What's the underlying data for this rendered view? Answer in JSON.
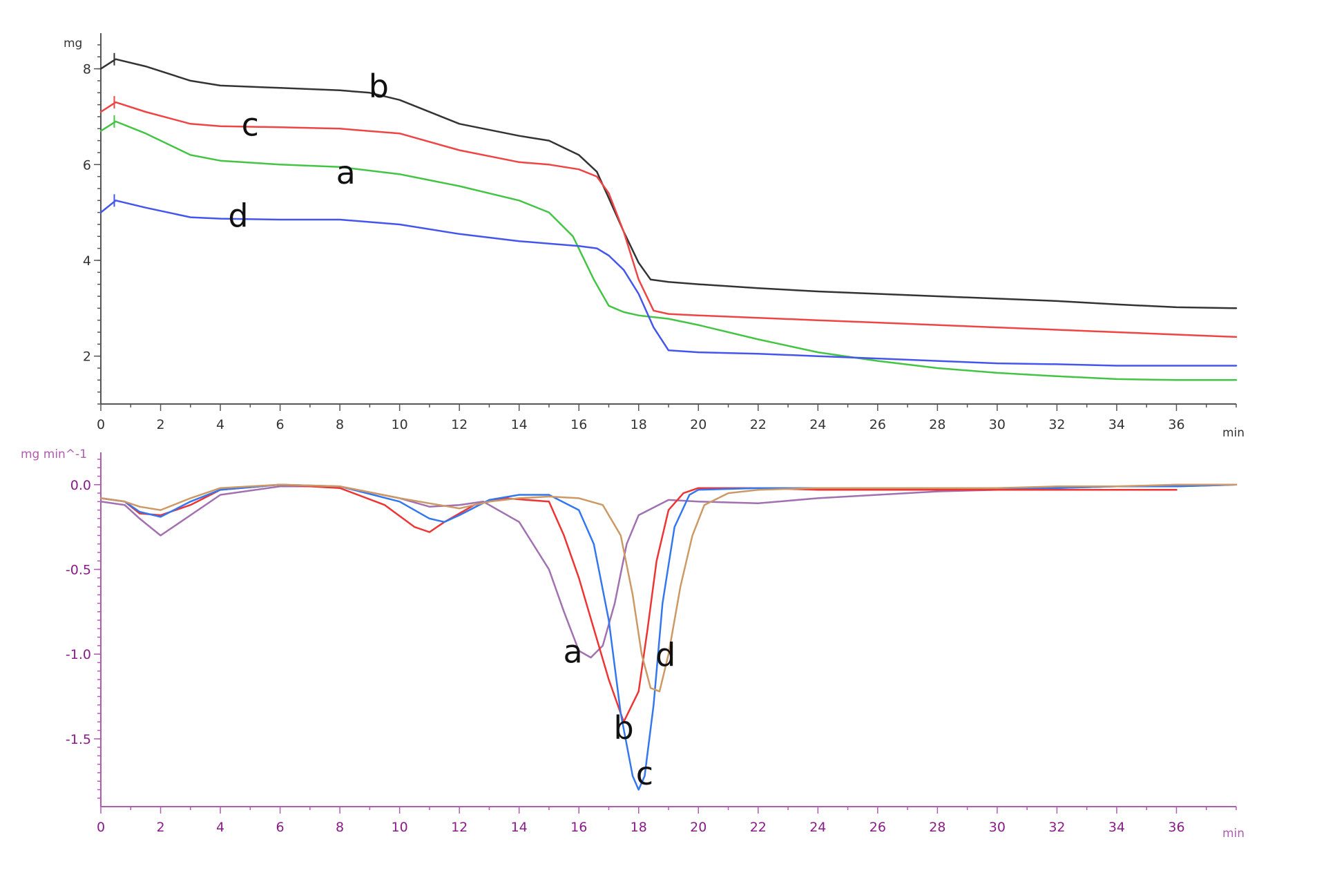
{
  "chart_data": [
    {
      "type": "line",
      "title": "",
      "xlabel": "",
      "ylabel": "",
      "x_unit": "min",
      "y_unit": "mg",
      "xlim": [
        0,
        38
      ],
      "ylim": [
        1,
        8.6
      ],
      "x_ticks": [
        0,
        2,
        4,
        6,
        8,
        10,
        12,
        14,
        16,
        18,
        20,
        22,
        24,
        26,
        28,
        30,
        32,
        34,
        36
      ],
      "y_ticks": [
        2,
        4,
        6,
        8
      ],
      "grid": false,
      "series": [
        {
          "name": "a",
          "color": "#44c444",
          "x": [
            0,
            0.5,
            1.5,
            3,
            4,
            6,
            8,
            10,
            12,
            14,
            15,
            15.8,
            16.5,
            17,
            17.5,
            18,
            19,
            20,
            22,
            24,
            26,
            28,
            30,
            32,
            34,
            36,
            38
          ],
          "y": [
            6.7,
            6.9,
            6.65,
            6.2,
            6.08,
            6.0,
            5.95,
            5.8,
            5.55,
            5.25,
            5.0,
            4.5,
            3.6,
            3.05,
            2.92,
            2.85,
            2.78,
            2.65,
            2.35,
            2.08,
            1.9,
            1.75,
            1.65,
            1.58,
            1.52,
            1.5,
            1.5
          ]
        },
        {
          "name": "b",
          "color": "#333333",
          "x": [
            0,
            0.5,
            1.5,
            3,
            4,
            6,
            8,
            9,
            10,
            12,
            14,
            15,
            16,
            16.6,
            17,
            17.5,
            18,
            18.4,
            19,
            20,
            22,
            24,
            26,
            28,
            30,
            32,
            34,
            36,
            38
          ],
          "y": [
            8.0,
            8.2,
            8.05,
            7.75,
            7.65,
            7.6,
            7.55,
            7.5,
            7.35,
            6.85,
            6.6,
            6.5,
            6.2,
            5.85,
            5.3,
            4.6,
            3.95,
            3.6,
            3.55,
            3.5,
            3.42,
            3.35,
            3.3,
            3.25,
            3.2,
            3.15,
            3.08,
            3.02,
            3.0
          ]
        },
        {
          "name": "c",
          "color": "#ee4444",
          "x": [
            0,
            0.5,
            1.5,
            3,
            4,
            6,
            8,
            10,
            12,
            14,
            15,
            16,
            16.6,
            17,
            17.5,
            18,
            18.5,
            19,
            20,
            22,
            24,
            26,
            28,
            30,
            32,
            34,
            36,
            38
          ],
          "y": [
            7.1,
            7.3,
            7.1,
            6.85,
            6.8,
            6.78,
            6.75,
            6.65,
            6.3,
            6.05,
            6.0,
            5.9,
            5.75,
            5.4,
            4.6,
            3.6,
            2.95,
            2.88,
            2.85,
            2.8,
            2.75,
            2.7,
            2.65,
            2.6,
            2.55,
            2.5,
            2.45,
            2.4
          ]
        },
        {
          "name": "d",
          "color": "#4455ee",
          "x": [
            0,
            0.5,
            1.5,
            3,
            4,
            6,
            8,
            10,
            12,
            14,
            15,
            16,
            16.6,
            17,
            17.5,
            18,
            18.5,
            19,
            20,
            22,
            24,
            26,
            28,
            30,
            32,
            34,
            36,
            38
          ],
          "y": [
            5.0,
            5.25,
            5.1,
            4.9,
            4.87,
            4.85,
            4.85,
            4.75,
            4.55,
            4.4,
            4.35,
            4.3,
            4.25,
            4.1,
            3.8,
            3.3,
            2.6,
            2.12,
            2.08,
            2.05,
            2.0,
            1.95,
            1.9,
            1.85,
            1.83,
            1.8,
            1.8,
            1.8
          ]
        }
      ],
      "annotations": [
        {
          "text": "b",
          "x": 9.3,
          "y": 7.4
        },
        {
          "text": "c",
          "x": 5.0,
          "y": 6.6
        },
        {
          "text": "a",
          "x": 8.2,
          "y": 5.6
        },
        {
          "text": "d",
          "x": 4.6,
          "y": 4.7
        }
      ]
    },
    {
      "type": "line",
      "title": "",
      "xlabel": "",
      "ylabel": "",
      "x_unit": "min",
      "y_unit": "mg min^-1",
      "xlim": [
        0,
        38
      ],
      "ylim": [
        -1.9,
        0.15
      ],
      "x_ticks": [
        0,
        2,
        4,
        6,
        8,
        10,
        12,
        14,
        16,
        18,
        20,
        22,
        24,
        26,
        28,
        30,
        32,
        34,
        36
      ],
      "y_ticks": [
        0.0,
        -0.5,
        -1.0,
        -1.5
      ],
      "y_tick_labels": [
        "0.0",
        "-0.5",
        "-1.0",
        "-1.5"
      ],
      "grid": false,
      "series": [
        {
          "name": "a",
          "color": "#a070b0",
          "x": [
            0,
            0.8,
            1.3,
            2,
            3,
            4,
            6,
            8,
            10,
            11,
            12,
            12.8,
            14,
            15,
            15.5,
            16,
            16.4,
            16.8,
            17.2,
            17.6,
            18,
            19,
            20,
            22,
            24,
            26,
            28,
            30,
            32,
            34,
            36,
            38
          ],
          "y": [
            -0.1,
            -0.12,
            -0.2,
            -0.3,
            -0.18,
            -0.06,
            -0.01,
            -0.01,
            -0.08,
            -0.13,
            -0.12,
            -0.1,
            -0.22,
            -0.5,
            -0.75,
            -0.98,
            -1.02,
            -0.95,
            -0.7,
            -0.35,
            -0.18,
            -0.09,
            -0.1,
            -0.11,
            -0.08,
            -0.06,
            -0.04,
            -0.03,
            -0.02,
            -0.01,
            -0.01,
            0.0
          ]
        },
        {
          "name": "b",
          "color": "#ee3333",
          "x": [
            0,
            0.8,
            1.3,
            2,
            3,
            4,
            6,
            8,
            9.5,
            10.5,
            11,
            11.5,
            12.5,
            13.5,
            15,
            15.5,
            16,
            16.5,
            17,
            17.5,
            18,
            18.3,
            18.6,
            19,
            19.5,
            20,
            22,
            24,
            26,
            28,
            30,
            32,
            34,
            36
          ],
          "y": [
            -0.08,
            -0.1,
            -0.17,
            -0.18,
            -0.12,
            -0.03,
            0.0,
            -0.02,
            -0.12,
            -0.25,
            -0.28,
            -0.22,
            -0.12,
            -0.08,
            -0.1,
            -0.3,
            -0.55,
            -0.85,
            -1.15,
            -1.4,
            -1.22,
            -0.85,
            -0.45,
            -0.15,
            -0.05,
            -0.02,
            -0.02,
            -0.03,
            -0.03,
            -0.03,
            -0.03,
            -0.03,
            -0.03,
            -0.03
          ]
        },
        {
          "name": "c",
          "color": "#3377ee",
          "x": [
            0,
            0.8,
            1.3,
            2,
            3,
            4,
            6,
            8,
            10,
            11,
            11.5,
            12,
            13,
            14,
            15,
            16,
            16.5,
            17,
            17.4,
            17.8,
            18,
            18.2,
            18.5,
            18.8,
            19.2,
            19.7,
            20,
            22,
            24,
            26,
            28,
            30,
            32,
            34,
            36,
            38
          ],
          "y": [
            -0.08,
            -0.1,
            -0.16,
            -0.19,
            -0.1,
            -0.03,
            0.0,
            -0.01,
            -0.1,
            -0.2,
            -0.22,
            -0.18,
            -0.09,
            -0.06,
            -0.06,
            -0.15,
            -0.35,
            -0.8,
            -1.35,
            -1.72,
            -1.8,
            -1.72,
            -1.3,
            -0.7,
            -0.25,
            -0.06,
            -0.03,
            -0.02,
            -0.02,
            -0.02,
            -0.02,
            -0.02,
            -0.02,
            -0.01,
            -0.01,
            0.0
          ]
        },
        {
          "name": "d",
          "color": "#cc9966",
          "x": [
            0,
            0.8,
            1.3,
            2,
            3,
            4,
            6,
            8,
            10,
            12,
            13,
            14,
            15,
            16,
            16.8,
            17.4,
            17.8,
            18.1,
            18.4,
            18.7,
            19,
            19.4,
            19.8,
            20.2,
            21,
            22,
            24,
            26,
            28,
            30,
            32,
            34,
            36,
            38
          ],
          "y": [
            -0.08,
            -0.1,
            -0.13,
            -0.15,
            -0.08,
            -0.02,
            0.0,
            -0.01,
            -0.08,
            -0.14,
            -0.1,
            -0.08,
            -0.07,
            -0.08,
            -0.12,
            -0.3,
            -0.65,
            -1.0,
            -1.2,
            -1.22,
            -1.0,
            -0.6,
            -0.3,
            -0.12,
            -0.05,
            -0.03,
            -0.02,
            -0.02,
            -0.02,
            -0.02,
            -0.01,
            -0.01,
            0.0,
            0.0
          ]
        }
      ],
      "annotations": [
        {
          "text": "a",
          "x": 15.8,
          "y": -1.05
        },
        {
          "text": "b",
          "x": 17.5,
          "y": -1.5
        },
        {
          "text": "c",
          "x": 18.2,
          "y": -1.77
        },
        {
          "text": "d",
          "x": 18.9,
          "y": -1.07
        }
      ]
    }
  ]
}
